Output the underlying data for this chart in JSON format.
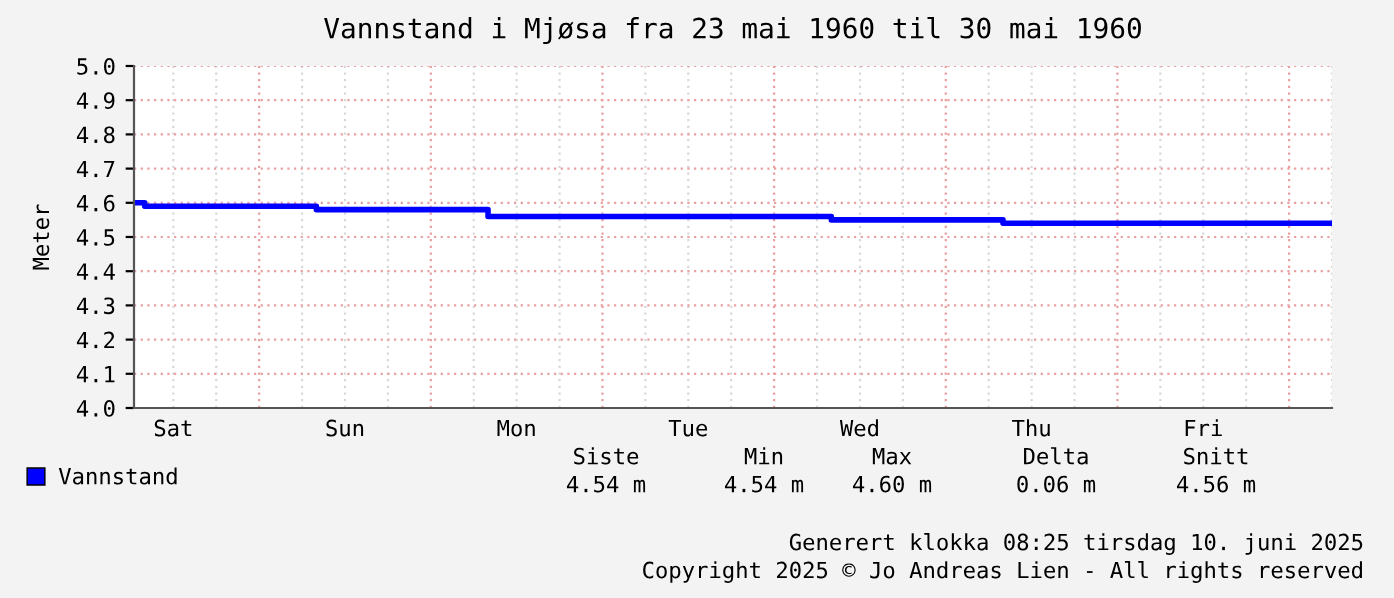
{
  "chart_data": {
    "type": "step",
    "title": "Vannstand i Mjøsa fra 23 mai 1960 til 30 mai 1960",
    "ylabel": "Meter",
    "categories": [
      null,
      null,
      null,
      "Sat",
      null,
      null,
      null,
      null,
      null,
      null,
      null,
      null,
      null,
      null,
      null,
      "Sun",
      null,
      null,
      null,
      null,
      null,
      null,
      null,
      null,
      null,
      null,
      null,
      "Mon",
      null,
      null,
      null,
      null,
      null,
      null,
      null,
      null,
      null,
      null,
      null,
      "Tue",
      null,
      null,
      null,
      null,
      null,
      null,
      null,
      null,
      null,
      null,
      null,
      "Wed",
      null,
      null,
      null,
      null,
      null,
      null,
      null,
      null,
      null,
      null,
      null,
      "Thu",
      null,
      null,
      null,
      null,
      null,
      null,
      null,
      null,
      null,
      null,
      null,
      "Fri",
      null,
      null,
      null,
      null,
      null,
      null,
      null,
      null,
      null
    ],
    "series": [
      {
        "name": "Vannstand",
        "color": "#0000ff",
        "values": [
          4.6,
          4.59,
          4.59,
          4.59,
          4.59,
          4.59,
          4.59,
          4.59,
          4.59,
          4.59,
          4.59,
          4.59,
          4.59,
          4.58,
          4.58,
          4.58,
          4.58,
          4.58,
          4.58,
          4.58,
          4.58,
          4.58,
          4.58,
          4.58,
          4.58,
          4.56,
          4.56,
          4.56,
          4.56,
          4.56,
          4.56,
          4.56,
          4.56,
          4.56,
          4.56,
          4.56,
          4.56,
          4.56,
          4.56,
          4.56,
          4.56,
          4.56,
          4.56,
          4.56,
          4.56,
          4.56,
          4.56,
          4.56,
          4.56,
          4.55,
          4.55,
          4.55,
          4.55,
          4.55,
          4.55,
          4.55,
          4.55,
          4.55,
          4.55,
          4.55,
          4.55,
          4.54,
          4.54,
          4.54,
          4.54,
          4.54,
          4.54,
          4.54,
          4.54,
          4.54,
          4.54,
          4.54,
          4.54,
          4.54,
          4.54,
          4.54,
          4.54,
          4.54,
          4.54,
          4.54,
          4.54,
          4.54,
          4.54,
          4.54,
          4.54
        ]
      }
    ],
    "ylim": [
      4.0,
      5.0
    ],
    "yticks": [
      {
        "value": 4.0,
        "label": "4.0"
      },
      4.1,
      4.2,
      4.3,
      4.4,
      4.5,
      4.6,
      4.7,
      4.8,
      4.9,
      {
        "value": 5.0,
        "label": "5.0"
      }
    ],
    "grid": true,
    "legend": "bottom left",
    "annotations": [
      "Siste",
      "Min",
      "Max",
      "Delta",
      "Snitt",
      "4.54 m",
      "4.54 m",
      "4.60 m",
      "0.06 m",
      "4.56 m",
      "Generert klokka 08:25 tirsdag 10. juni 2025",
      "Copyright 2025 © Jo Andreas Lien - All rights reserved"
    ]
  }
}
